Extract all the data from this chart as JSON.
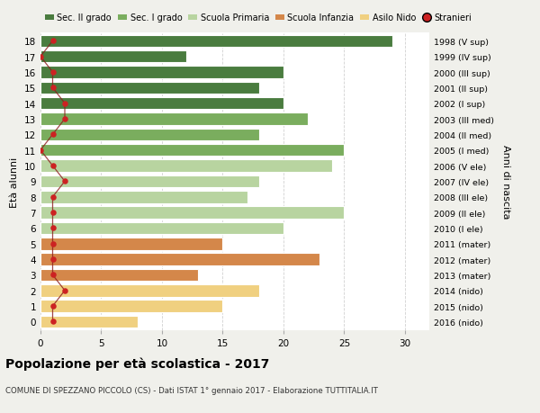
{
  "ages": [
    18,
    17,
    16,
    15,
    14,
    13,
    12,
    11,
    10,
    9,
    8,
    7,
    6,
    5,
    4,
    3,
    2,
    1,
    0
  ],
  "right_labels": [
    "1998 (V sup)",
    "1999 (IV sup)",
    "2000 (III sup)",
    "2001 (II sup)",
    "2002 (I sup)",
    "2003 (III med)",
    "2004 (II med)",
    "2005 (I med)",
    "2006 (V ele)",
    "2007 (IV ele)",
    "2008 (III ele)",
    "2009 (II ele)",
    "2010 (I ele)",
    "2011 (mater)",
    "2012 (mater)",
    "2013 (mater)",
    "2014 (nido)",
    "2015 (nido)",
    "2016 (nido)"
  ],
  "bar_values": [
    29,
    12,
    20,
    18,
    20,
    22,
    18,
    25,
    24,
    18,
    17,
    25,
    20,
    15,
    23,
    13,
    18,
    15,
    8
  ],
  "bar_colors": [
    "#4a7c3f",
    "#4a7c3f",
    "#4a7c3f",
    "#4a7c3f",
    "#4a7c3f",
    "#7aad5e",
    "#7aad5e",
    "#7aad5e",
    "#b8d4a0",
    "#b8d4a0",
    "#b8d4a0",
    "#b8d4a0",
    "#b8d4a0",
    "#d4874a",
    "#d4874a",
    "#d4874a",
    "#f0d080",
    "#f0d080",
    "#f0d080"
  ],
  "stranieri_values": [
    1,
    0,
    1,
    1,
    2,
    2,
    1,
    0,
    1,
    2,
    1,
    1,
    1,
    1,
    1,
    1,
    2,
    1,
    1
  ],
  "legend_labels": [
    "Sec. II grado",
    "Sec. I grado",
    "Scuola Primaria",
    "Scuola Infanzia",
    "Asilo Nido",
    "Stranieri"
  ],
  "legend_colors": [
    "#4a7c3f",
    "#7aad5e",
    "#b8d4a0",
    "#d4874a",
    "#f0d080",
    "#cc2222"
  ],
  "title": "Popolazione per età scolastica - 2017",
  "subtitle": "COMUNE DI SPEZZANO PICCOLO (CS) - Dati ISTAT 1° gennaio 2017 - Elaborazione TUTTITALIA.IT",
  "ylabel": "Età alunni",
  "ylabel_right": "Anni di nascita",
  "xlim": [
    0,
    32
  ],
  "xticks": [
    0,
    5,
    10,
    15,
    20,
    25,
    30
  ],
  "bg_color": "#f0f0eb",
  "plot_bg_color": "#ffffff",
  "grid_color": "#cccccc"
}
